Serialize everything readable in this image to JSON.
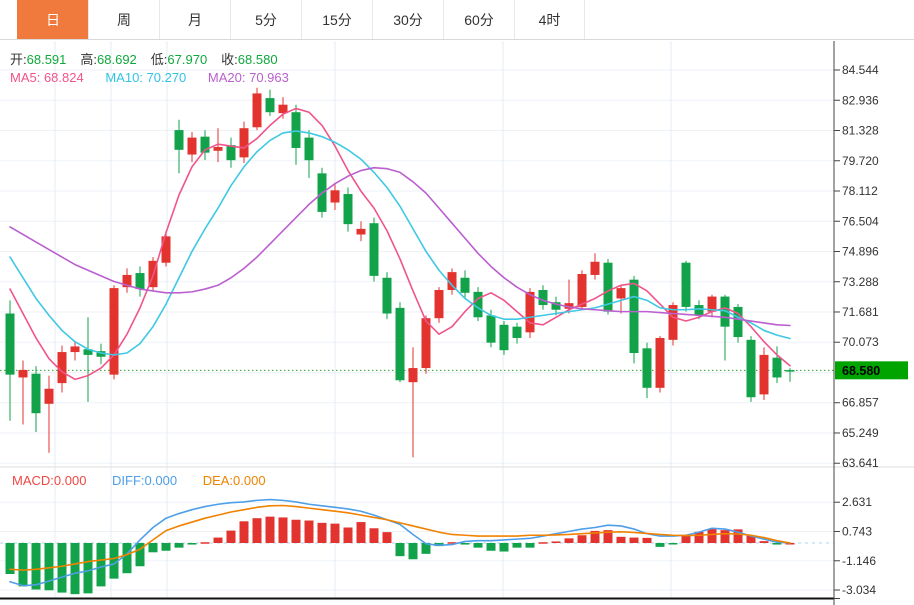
{
  "tabs": [
    {
      "label": "日",
      "active": true
    },
    {
      "label": "周",
      "active": false
    },
    {
      "label": "月",
      "active": false
    },
    {
      "label": "5分",
      "active": false
    },
    {
      "label": "15分",
      "active": false
    },
    {
      "label": "30分",
      "active": false
    },
    {
      "label": "60分",
      "active": false
    },
    {
      "label": "4时",
      "active": false
    }
  ],
  "quote": {
    "items": [
      {
        "label": "开:",
        "value": "68.591"
      },
      {
        "label": "高:",
        "value": "68.692"
      },
      {
        "label": "低:",
        "value": "67.970"
      },
      {
        "label": "收:",
        "value": "68.580"
      }
    ]
  },
  "ma_row": {
    "ma5": "MA5: 68.824",
    "ma10": "MA10: 70.270",
    "ma20": "MA20: 70.963"
  },
  "macd_row": {
    "macd": "MACD:0.000",
    "diff": "DIFF:0.000",
    "dea": "DEA:0.000"
  },
  "colors": {
    "up": "#e2332e",
    "down": "#12a34a",
    "ma5": "#f0548b",
    "ma10": "#3fc8e4",
    "ma20": "#bb5fd0",
    "diff": "#4f9ee8",
    "dea": "#f08200",
    "badge": "#00a400",
    "price_line": "#2aa52a",
    "zero_line": "#a8d4f0",
    "tab_active": "#f0793d",
    "axis_text": "#333333"
  },
  "chart_data": {
    "type": "candlestick+macd",
    "price_axis": {
      "tick_labels": [
        "84.544",
        "82.936",
        "81.328",
        "79.720",
        "78.112",
        "76.504",
        "74.896",
        "73.288",
        "71.681",
        "70.073",
        "66.857",
        "65.249",
        "63.641"
      ],
      "tick_values": [
        84.544,
        82.936,
        81.328,
        79.72,
        78.112,
        76.504,
        74.896,
        73.288,
        71.681,
        70.073,
        66.857,
        65.249,
        63.641
      ],
      "hidden_grid_value": 68.465,
      "current_price": "68.580",
      "current_price_value": 68.58
    },
    "macd_axis": {
      "tick_labels": [
        "2.631",
        "0.743",
        "-1.146",
        "-3.034"
      ],
      "tick_values": [
        2.631,
        0.743,
        -1.146,
        -3.034
      ]
    },
    "candles": [
      [
        71.6,
        72.3,
        65.9,
        68.35
      ],
      [
        68.2,
        69.1,
        65.7,
        68.6
      ],
      [
        68.4,
        68.8,
        65.3,
        66.3
      ],
      [
        66.8,
        68.3,
        64.2,
        67.6
      ],
      [
        67.9,
        69.9,
        67.4,
        69.55
      ],
      [
        69.55,
        70.1,
        69.1,
        69.85
      ],
      [
        69.7,
        71.4,
        66.9,
        69.4
      ],
      [
        69.6,
        70.0,
        68.9,
        69.3
      ],
      [
        68.35,
        73.1,
        68.1,
        72.95
      ],
      [
        73.0,
        74.0,
        72.7,
        73.65
      ],
      [
        73.75,
        74.1,
        72.5,
        72.9
      ],
      [
        73.0,
        74.6,
        72.8,
        74.4
      ],
      [
        74.3,
        76.0,
        74.1,
        75.7
      ],
      [
        81.35,
        81.9,
        79.05,
        80.3
      ],
      [
        80.05,
        81.25,
        79.65,
        80.95
      ],
      [
        81.0,
        81.35,
        79.75,
        80.15
      ],
      [
        80.25,
        81.45,
        79.65,
        80.45
      ],
      [
        80.55,
        80.95,
        79.35,
        79.75
      ],
      [
        79.9,
        81.8,
        79.6,
        81.45
      ],
      [
        81.5,
        83.6,
        81.35,
        83.3
      ],
      [
        83.05,
        83.5,
        82.1,
        82.3
      ],
      [
        82.25,
        83.1,
        81.95,
        82.7
      ],
      [
        82.3,
        82.7,
        79.5,
        80.4
      ],
      [
        80.95,
        81.35,
        78.8,
        79.75
      ],
      [
        79.05,
        79.35,
        76.7,
        77.0
      ],
      [
        77.5,
        78.55,
        77.1,
        78.15
      ],
      [
        77.95,
        78.3,
        75.95,
        76.35
      ],
      [
        75.8,
        76.5,
        75.45,
        76.1
      ],
      [
        76.4,
        76.7,
        73.3,
        73.6
      ],
      [
        73.5,
        73.8,
        71.3,
        71.6
      ],
      [
        71.9,
        72.2,
        67.95,
        68.05
      ],
      [
        67.95,
        69.8,
        63.95,
        68.7
      ],
      [
        68.7,
        71.5,
        68.4,
        71.35
      ],
      [
        71.35,
        73.0,
        71.1,
        72.85
      ],
      [
        72.85,
        74.0,
        72.6,
        73.8
      ],
      [
        73.5,
        73.9,
        72.4,
        72.7
      ],
      [
        72.75,
        73.0,
        71.2,
        71.4
      ],
      [
        71.5,
        71.8,
        69.8,
        70.05
      ],
      [
        71.0,
        71.2,
        69.4,
        69.65
      ],
      [
        70.9,
        71.1,
        70.0,
        70.3
      ],
      [
        70.6,
        72.95,
        70.3,
        72.75
      ],
      [
        72.85,
        73.1,
        71.8,
        72.05
      ],
      [
        72.2,
        72.5,
        71.5,
        71.8
      ],
      [
        71.85,
        73.4,
        71.6,
        72.15
      ],
      [
        71.95,
        73.9,
        71.8,
        73.7
      ],
      [
        73.65,
        74.8,
        73.4,
        74.35
      ],
      [
        74.3,
        74.5,
        71.55,
        71.7
      ],
      [
        72.4,
        73.1,
        71.6,
        72.95
      ],
      [
        73.4,
        73.6,
        68.95,
        69.5
      ],
      [
        69.75,
        70.05,
        67.1,
        67.65
      ],
      [
        67.65,
        70.4,
        67.4,
        70.3
      ],
      [
        70.2,
        72.2,
        69.9,
        72.05
      ],
      [
        74.3,
        74.4,
        71.7,
        71.95
      ],
      [
        72.05,
        72.3,
        71.3,
        71.5
      ],
      [
        71.7,
        72.6,
        71.4,
        72.5
      ],
      [
        72.5,
        72.6,
        69.1,
        70.9
      ],
      [
        71.95,
        72.1,
        70.05,
        70.35
      ],
      [
        70.2,
        70.4,
        66.9,
        67.15
      ],
      [
        67.3,
        69.8,
        67.0,
        69.4
      ],
      [
        69.25,
        69.85,
        67.9,
        68.2
      ],
      [
        68.591,
        68.692,
        67.97,
        68.58
      ]
    ],
    "ma5": [
      72.9,
      71.6,
      70.3,
      69.2,
      68.5,
      68.1,
      68.3,
      68.7,
      69.4,
      70.5,
      71.9,
      73.6,
      75.9,
      77.9,
      79.4,
      80.3,
      80.6,
      80.5,
      80.4,
      80.9,
      81.6,
      82.2,
      82.5,
      82.3,
      81.6,
      80.5,
      79.2,
      78.1,
      77.2,
      76.0,
      74.5,
      72.8,
      71.2,
      70.5,
      70.9,
      71.7,
      72.4,
      72.7,
      72.3,
      71.7,
      71.1,
      71.0,
      71.4,
      71.8,
      72.1,
      72.4,
      72.8,
      73.1,
      73.2,
      72.8,
      72.1,
      71.4,
      71.2,
      71.4,
      71.7,
      71.9,
      71.6,
      70.9,
      70.1,
      69.4,
      68.824
    ],
    "ma10": [
      74.6,
      73.5,
      72.4,
      71.5,
      70.7,
      70.1,
      69.7,
      69.5,
      69.4,
      69.5,
      70.0,
      70.9,
      72.1,
      73.5,
      74.9,
      76.1,
      77.2,
      78.4,
      79.4,
      80.2,
      80.8,
      81.2,
      81.3,
      81.2,
      81.0,
      80.7,
      80.3,
      79.8,
      79.1,
      78.3,
      77.3,
      76.1,
      74.9,
      73.9,
      73.1,
      72.4,
      71.9,
      71.5,
      71.3,
      71.3,
      71.4,
      71.5,
      71.6,
      71.7,
      71.8,
      71.9,
      72.1,
      72.3,
      72.5,
      72.3,
      71.9,
      71.8,
      71.8,
      71.85,
      71.8,
      71.75,
      71.4,
      71.1,
      70.7,
      70.45,
      70.27
    ],
    "ma20": [
      76.2,
      75.8,
      75.4,
      75.0,
      74.6,
      74.2,
      73.9,
      73.6,
      73.3,
      73.1,
      72.9,
      72.8,
      72.7,
      72.7,
      72.75,
      72.9,
      73.1,
      73.5,
      74.0,
      74.6,
      75.3,
      76.0,
      76.7,
      77.4,
      78.0,
      78.5,
      78.9,
      79.2,
      79.35,
      79.3,
      79.1,
      78.6,
      78.0,
      77.2,
      76.4,
      75.6,
      74.8,
      74.1,
      73.5,
      73.0,
      72.6,
      72.3,
      72.1,
      71.95,
      71.85,
      71.8,
      71.75,
      71.7,
      71.7,
      71.7,
      71.65,
      71.6,
      71.55,
      71.5,
      71.45,
      71.4,
      71.3,
      71.2,
      71.1,
      71.0,
      70.963
    ],
    "macd": {
      "hist": [
        -2.0,
        -2.8,
        -3.0,
        -3.05,
        -3.2,
        -3.3,
        -3.25,
        -2.8,
        -2.3,
        -1.95,
        -1.5,
        -0.6,
        -0.5,
        -0.3,
        -0.1,
        0.05,
        0.35,
        0.8,
        1.4,
        1.6,
        1.7,
        1.65,
        1.5,
        1.45,
        1.3,
        1.25,
        1.0,
        1.35,
        0.95,
        0.7,
        -0.85,
        -1.05,
        -0.7,
        -0.2,
        0.05,
        -0.1,
        -0.3,
        -0.5,
        -0.55,
        -0.3,
        -0.3,
        0.05,
        0.1,
        0.3,
        0.5,
        0.78,
        0.83,
        0.4,
        0.35,
        0.33,
        -0.25,
        -0.08,
        0.45,
        0.72,
        0.9,
        0.83,
        0.88,
        0.48,
        0.12,
        -0.1,
        0.0
      ],
      "diff": [
        -2.5,
        -2.75,
        -2.7,
        -2.45,
        -2.2,
        -1.95,
        -1.8,
        -1.55,
        -1.35,
        -0.7,
        0.2,
        1.0,
        1.6,
        1.9,
        2.15,
        2.35,
        2.5,
        2.6,
        2.65,
        2.75,
        2.8,
        2.75,
        2.65,
        2.5,
        2.4,
        2.3,
        2.2,
        2.05,
        1.8,
        1.5,
        1.2,
        0.55,
        -0.05,
        -0.15,
        -0.1,
        0.1,
        0.15,
        0.15,
        0.2,
        0.25,
        0.3,
        0.45,
        0.6,
        0.75,
        0.9,
        1.0,
        1.15,
        1.1,
        0.9,
        0.6,
        0.45,
        0.45,
        0.5,
        0.7,
        0.95,
        0.9,
        0.7,
        0.45,
        0.25,
        0.05,
        0.0
      ],
      "dea": [
        -1.7,
        -1.75,
        -1.7,
        -1.6,
        -1.5,
        -1.35,
        -1.2,
        -1.1,
        -1.0,
        -0.75,
        -0.4,
        0.2,
        0.8,
        1.1,
        1.35,
        1.6,
        1.8,
        2.0,
        2.15,
        2.3,
        2.4,
        2.42,
        2.35,
        2.25,
        2.15,
        2.05,
        1.95,
        1.8,
        1.65,
        1.5,
        1.3,
        1.1,
        0.9,
        0.7,
        0.55,
        0.5,
        0.45,
        0.45,
        0.45,
        0.45,
        0.5,
        0.5,
        0.52,
        0.55,
        0.6,
        0.65,
        0.7,
        0.72,
        0.68,
        0.62,
        0.55,
        0.5,
        0.48,
        0.5,
        0.55,
        0.6,
        0.58,
        0.5,
        0.35,
        0.15,
        0.0
      ]
    },
    "grid": {
      "vertical_x": [
        55,
        111,
        167,
        335,
        503,
        671
      ]
    },
    "legend": [
      "MA5",
      "MA10",
      "MA20",
      "MACD",
      "DIFF",
      "DEA"
    ]
  }
}
